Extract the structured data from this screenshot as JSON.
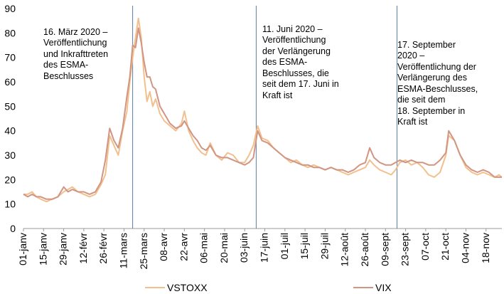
{
  "chart_data": {
    "type": "line",
    "title": "",
    "xlabel": "",
    "ylabel": "",
    "ylim": [
      0,
      90
    ],
    "yticks": [
      0,
      10,
      20,
      30,
      40,
      50,
      60,
      70,
      80,
      90
    ],
    "grid": false,
    "legend_position": "bottom",
    "x_tick_labels": [
      "01-janv",
      "15-janv",
      "29-janv",
      "12-févr",
      "26-févr",
      "11-mars",
      "25-mars",
      "08-avr",
      "22-avr",
      "06-mai",
      "20-mai",
      "03-juin",
      "17-juin",
      "01-juil",
      "15-juil",
      "29-juil",
      "12-août",
      "26-août",
      "09-sept",
      "23-sept",
      "07-oct",
      "21-oct",
      "04-nov",
      "18-nov"
    ],
    "x_tick_days": [
      0,
      14,
      28,
      42,
      56,
      70,
      84,
      98,
      112,
      126,
      140,
      154,
      168,
      182,
      196,
      210,
      224,
      238,
      252,
      266,
      280,
      294,
      308,
      322
    ],
    "x_range_days": [
      0,
      333
    ],
    "series": [
      {
        "name": "VSTOXX",
        "color": "#F2C08E",
        "points": [
          [
            0,
            14
          ],
          [
            3,
            14
          ],
          [
            6,
            15
          ],
          [
            9,
            13
          ],
          [
            12,
            12
          ],
          [
            16,
            11
          ],
          [
            20,
            12
          ],
          [
            24,
            13
          ],
          [
            28,
            15
          ],
          [
            31,
            16
          ],
          [
            34,
            17
          ],
          [
            38,
            15
          ],
          [
            42,
            14
          ],
          [
            46,
            13
          ],
          [
            50,
            14
          ],
          [
            54,
            18
          ],
          [
            57,
            22
          ],
          [
            60,
            38
          ],
          [
            63,
            34
          ],
          [
            66,
            30
          ],
          [
            69,
            40
          ],
          [
            72,
            48
          ],
          [
            74,
            60
          ],
          [
            76,
            70
          ],
          [
            78,
            78
          ],
          [
            80,
            86
          ],
          [
            82,
            78
          ],
          [
            84,
            62
          ],
          [
            86,
            52
          ],
          [
            88,
            56
          ],
          [
            90,
            50
          ],
          [
            92,
            53
          ],
          [
            95,
            47
          ],
          [
            98,
            44
          ],
          [
            102,
            42
          ],
          [
            106,
            40
          ],
          [
            110,
            43
          ],
          [
            112,
            48
          ],
          [
            115,
            40
          ],
          [
            118,
            36
          ],
          [
            121,
            33
          ],
          [
            124,
            31
          ],
          [
            127,
            30
          ],
          [
            130,
            35
          ],
          [
            134,
            30
          ],
          [
            138,
            28
          ],
          [
            142,
            31
          ],
          [
            146,
            30
          ],
          [
            150,
            27
          ],
          [
            154,
            27
          ],
          [
            157,
            30
          ],
          [
            160,
            34
          ],
          [
            163,
            42
          ],
          [
            166,
            37
          ],
          [
            170,
            36
          ],
          [
            174,
            33
          ],
          [
            178,
            31
          ],
          [
            182,
            29
          ],
          [
            186,
            27
          ],
          [
            190,
            28
          ],
          [
            194,
            26
          ],
          [
            198,
            25
          ],
          [
            202,
            26
          ],
          [
            206,
            25
          ],
          [
            210,
            24
          ],
          [
            214,
            25
          ],
          [
            218,
            24
          ],
          [
            222,
            23
          ],
          [
            226,
            22
          ],
          [
            230,
            23
          ],
          [
            234,
            24
          ],
          [
            238,
            25
          ],
          [
            241,
            28
          ],
          [
            244,
            26
          ],
          [
            248,
            24
          ],
          [
            252,
            23
          ],
          [
            256,
            22
          ],
          [
            259,
            24
          ],
          [
            262,
            27
          ],
          [
            266,
            28
          ],
          [
            270,
            26
          ],
          [
            274,
            27
          ],
          [
            278,
            25
          ],
          [
            282,
            22
          ],
          [
            286,
            21
          ],
          [
            290,
            23
          ],
          [
            294,
            30
          ],
          [
            296,
            38
          ],
          [
            300,
            36
          ],
          [
            304,
            30
          ],
          [
            308,
            25
          ],
          [
            312,
            23
          ],
          [
            316,
            22
          ],
          [
            320,
            23
          ],
          [
            324,
            22
          ],
          [
            328,
            21
          ],
          [
            331,
            22
          ],
          [
            333,
            21
          ]
        ]
      },
      {
        "name": "VIX",
        "color": "#D09583",
        "points": [
          [
            0,
            14
          ],
          [
            3,
            13
          ],
          [
            6,
            14
          ],
          [
            9,
            13
          ],
          [
            12,
            13
          ],
          [
            16,
            12
          ],
          [
            20,
            12
          ],
          [
            24,
            13
          ],
          [
            28,
            17
          ],
          [
            31,
            15
          ],
          [
            34,
            16
          ],
          [
            38,
            15
          ],
          [
            42,
            15
          ],
          [
            46,
            14
          ],
          [
            50,
            15
          ],
          [
            54,
            19
          ],
          [
            57,
            28
          ],
          [
            60,
            41
          ],
          [
            63,
            36
          ],
          [
            66,
            33
          ],
          [
            69,
            41
          ],
          [
            72,
            54
          ],
          [
            74,
            62
          ],
          [
            76,
            75
          ],
          [
            78,
            74
          ],
          [
            80,
            82
          ],
          [
            82,
            76
          ],
          [
            84,
            68
          ],
          [
            86,
            62
          ],
          [
            88,
            62
          ],
          [
            90,
            58
          ],
          [
            92,
            57
          ],
          [
            95,
            50
          ],
          [
            98,
            47
          ],
          [
            102,
            43
          ],
          [
            106,
            41
          ],
          [
            110,
            42
          ],
          [
            112,
            44
          ],
          [
            115,
            41
          ],
          [
            118,
            38
          ],
          [
            121,
            36
          ],
          [
            124,
            33
          ],
          [
            127,
            32
          ],
          [
            130,
            34
          ],
          [
            134,
            30
          ],
          [
            138,
            29
          ],
          [
            142,
            29
          ],
          [
            146,
            28
          ],
          [
            150,
            27
          ],
          [
            154,
            26
          ],
          [
            157,
            27
          ],
          [
            160,
            29
          ],
          [
            163,
            40
          ],
          [
            166,
            36
          ],
          [
            170,
            35
          ],
          [
            174,
            33
          ],
          [
            178,
            31
          ],
          [
            182,
            29
          ],
          [
            186,
            28
          ],
          [
            190,
            27
          ],
          [
            194,
            26
          ],
          [
            198,
            26
          ],
          [
            202,
            25
          ],
          [
            206,
            25
          ],
          [
            210,
            24
          ],
          [
            214,
            25
          ],
          [
            218,
            24
          ],
          [
            222,
            24
          ],
          [
            226,
            23
          ],
          [
            230,
            24
          ],
          [
            234,
            26
          ],
          [
            238,
            27
          ],
          [
            241,
            33
          ],
          [
            244,
            29
          ],
          [
            248,
            27
          ],
          [
            252,
            26
          ],
          [
            256,
            26
          ],
          [
            259,
            27
          ],
          [
            262,
            28
          ],
          [
            266,
            27
          ],
          [
            270,
            28
          ],
          [
            274,
            27
          ],
          [
            278,
            27
          ],
          [
            282,
            26
          ],
          [
            286,
            26
          ],
          [
            290,
            28
          ],
          [
            294,
            31
          ],
          [
            296,
            40
          ],
          [
            300,
            36
          ],
          [
            304,
            30
          ],
          [
            308,
            26
          ],
          [
            312,
            24
          ],
          [
            316,
            23
          ],
          [
            320,
            24
          ],
          [
            324,
            23
          ],
          [
            328,
            21
          ],
          [
            331,
            21
          ],
          [
            333,
            21
          ]
        ]
      }
    ],
    "event_lines_days": [
      76,
      162,
      260
    ],
    "annotations": [
      {
        "text": "16. März 2020 –\nVeröffentlichung\nund Inkrafttreten\ndes ESMA-\nBeschlusses"
      },
      {
        "text": "11. Juni 2020 –\nVeröffentlichung\nder Verlängerung\ndes ESMA-\nBeschlusses, die\nseit dem 17. Juni in\nKraft ist"
      },
      {
        "text": "17. September\n2020 –\nVeröffentlichung der\nVerlängerung des\nESMA-Beschlusses,\ndie seit dem\n18. September in\nKraft ist"
      }
    ]
  }
}
